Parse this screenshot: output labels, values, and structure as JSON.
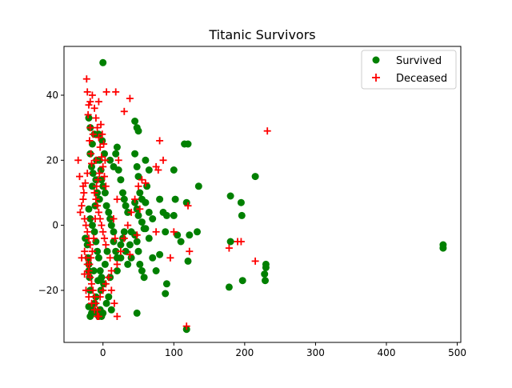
{
  "chart_data": {
    "type": "scatter",
    "title": "Titanic Survivors",
    "xlabel": "",
    "ylabel": "",
    "xlim": [
      -55,
      505
    ],
    "ylim": [
      -36,
      55
    ],
    "xticks": [
      0,
      100,
      200,
      300,
      400,
      500
    ],
    "yticks": [
      -20,
      0,
      20,
      40
    ],
    "grid": false,
    "legend": {
      "placement": "top-right"
    },
    "series": [
      {
        "name": "Survived",
        "marker": "circle",
        "color": "#008000",
        "points": [
          [
            0,
            50
          ],
          [
            -25,
            -4
          ],
          [
            -22,
            -6
          ],
          [
            -21,
            -10
          ],
          [
            -20,
            -12
          ],
          [
            -20,
            -14
          ],
          [
            -19,
            -16
          ],
          [
            -18,
            -20
          ],
          [
            -20,
            -25
          ],
          [
            -18,
            -28
          ],
          [
            -16,
            -27
          ],
          [
            -14,
            -26
          ],
          [
            -12,
            -24
          ],
          [
            -10,
            -22
          ],
          [
            -8,
            -27
          ],
          [
            -6,
            -28
          ],
          [
            -4,
            -26
          ],
          [
            -2,
            -28
          ],
          [
            0,
            -27
          ],
          [
            5,
            -24
          ],
          [
            -20,
            33
          ],
          [
            -18,
            30
          ],
          [
            -15,
            25
          ],
          [
            -12,
            28
          ],
          [
            -18,
            22
          ],
          [
            -16,
            18
          ],
          [
            -14,
            16
          ],
          [
            -10,
            14
          ],
          [
            -15,
            12
          ],
          [
            -8,
            10
          ],
          [
            -5,
            8
          ],
          [
            -20,
            5
          ],
          [
            -18,
            2
          ],
          [
            -15,
            0
          ],
          [
            -12,
            -2
          ],
          [
            -10,
            -5
          ],
          [
            -8,
            -8
          ],
          [
            -6,
            -10
          ],
          [
            -4,
            -14
          ],
          [
            -2,
            -16
          ],
          [
            -5,
            20
          ],
          [
            -3,
            17
          ],
          [
            -2,
            14
          ],
          [
            0,
            12
          ],
          [
            3,
            10
          ],
          [
            5,
            6
          ],
          [
            8,
            4
          ],
          [
            10,
            2
          ],
          [
            12,
            0
          ],
          [
            15,
            -2
          ],
          [
            -1,
            26
          ],
          [
            2,
            22
          ],
          [
            -6,
            28
          ],
          [
            -9,
            20
          ],
          [
            -11,
            6
          ],
          [
            -13,
            -14
          ],
          [
            -7,
            -17
          ],
          [
            1,
            -18
          ],
          [
            3,
            -12
          ],
          [
            6,
            -8
          ],
          [
            10,
            20
          ],
          [
            15,
            18
          ],
          [
            18,
            22
          ],
          [
            20,
            24
          ],
          [
            22,
            17
          ],
          [
            25,
            14
          ],
          [
            28,
            10
          ],
          [
            30,
            8
          ],
          [
            32,
            6
          ],
          [
            35,
            4
          ],
          [
            15,
            -5
          ],
          [
            18,
            -8
          ],
          [
            20,
            -10
          ],
          [
            25,
            -6
          ],
          [
            28,
            -4
          ],
          [
            30,
            -2
          ],
          [
            32,
            -8
          ],
          [
            35,
            -12
          ],
          [
            38,
            -6
          ],
          [
            40,
            -10
          ],
          [
            45,
            32
          ],
          [
            48,
            30
          ],
          [
            50,
            29
          ],
          [
            45,
            22
          ],
          [
            48,
            18
          ],
          [
            50,
            15
          ],
          [
            52,
            10
          ],
          [
            55,
            8
          ],
          [
            45,
            7
          ],
          [
            48,
            5
          ],
          [
            50,
            3
          ],
          [
            55,
            1
          ],
          [
            58,
            -1
          ],
          [
            45,
            -3
          ],
          [
            48,
            -5
          ],
          [
            50,
            -8
          ],
          [
            52,
            -12
          ],
          [
            55,
            -14
          ],
          [
            48,
            -27
          ],
          [
            58,
            -16
          ],
          [
            60,
            20
          ],
          [
            65,
            17
          ],
          [
            62,
            12
          ],
          [
            60,
            7
          ],
          [
            65,
            4
          ],
          [
            70,
            2
          ],
          [
            60,
            -1
          ],
          [
            65,
            -4
          ],
          [
            70,
            -10
          ],
          [
            75,
            -14
          ],
          [
            80,
            8
          ],
          [
            85,
            4
          ],
          [
            90,
            3
          ],
          [
            88,
            -2
          ],
          [
            80,
            -9
          ],
          [
            90,
            -18
          ],
          [
            88,
            -21
          ],
          [
            100,
            17
          ],
          [
            102,
            8
          ],
          [
            100,
            3
          ],
          [
            105,
            -3
          ],
          [
            110,
            -5
          ],
          [
            115,
            25
          ],
          [
            120,
            25
          ],
          [
            118,
            7
          ],
          [
            122,
            -3
          ],
          [
            120,
            -11
          ],
          [
            118,
            -32
          ],
          [
            135,
            12
          ],
          [
            133,
            -2
          ],
          [
            180,
            9
          ],
          [
            180,
            -5
          ],
          [
            178,
            -19
          ],
          [
            195,
            7
          ],
          [
            196,
            3
          ],
          [
            197,
            -17
          ],
          [
            215,
            15
          ],
          [
            230,
            -12
          ],
          [
            230,
            -13
          ],
          [
            228,
            -15
          ],
          [
            229,
            -17
          ],
          [
            480,
            -6
          ],
          [
            480,
            -7
          ],
          [
            20,
            -14
          ],
          [
            25,
            -10
          ],
          [
            10,
            -16
          ],
          [
            -3,
            -20
          ],
          [
            8,
            -22
          ],
          [
            12,
            -26
          ],
          [
            40,
            -2
          ]
        ]
      },
      {
        "name": "Deceased",
        "marker": "plus",
        "color": "#ff0000",
        "points": [
          [
            -23,
            45
          ],
          [
            -22,
            41
          ],
          [
            -20,
            37
          ],
          [
            -21,
            34
          ],
          [
            -18,
            30
          ],
          [
            -19,
            26
          ],
          [
            -17,
            22
          ],
          [
            -16,
            19
          ],
          [
            -22,
            16
          ],
          [
            -25,
            13
          ],
          [
            -27,
            10
          ],
          [
            -28,
            8
          ],
          [
            -30,
            6
          ],
          [
            -32,
            4
          ],
          [
            -26,
            2
          ],
          [
            -24,
            0
          ],
          [
            -22,
            -2
          ],
          [
            -20,
            -4
          ],
          [
            -18,
            -6
          ],
          [
            -26,
            -8
          ],
          [
            -24,
            -10
          ],
          [
            -22,
            -12
          ],
          [
            -20,
            -14
          ],
          [
            -18,
            -16
          ],
          [
            -16,
            -18
          ],
          [
            -14,
            -20
          ],
          [
            -12,
            -22
          ],
          [
            -10,
            -24
          ],
          [
            -8,
            -26
          ],
          [
            -6,
            -28
          ],
          [
            -15,
            40
          ],
          [
            -12,
            36
          ],
          [
            -10,
            33
          ],
          [
            -8,
            30
          ],
          [
            -6,
            27
          ],
          [
            -4,
            24
          ],
          [
            -2,
            21
          ],
          [
            0,
            18
          ],
          [
            2,
            15
          ],
          [
            4,
            12
          ],
          [
            -12,
            10
          ],
          [
            -10,
            8
          ],
          [
            -8,
            6
          ],
          [
            -6,
            4
          ],
          [
            -4,
            2
          ],
          [
            -2,
            0
          ],
          [
            0,
            -2
          ],
          [
            2,
            -4
          ],
          [
            4,
            -6
          ],
          [
            -3,
            31
          ],
          [
            -1,
            28
          ],
          [
            1,
            25
          ],
          [
            3,
            20
          ],
          [
            -5,
            16
          ],
          [
            -7,
            14
          ],
          [
            -9,
            12
          ],
          [
            -11,
            2
          ],
          [
            -13,
            -4
          ],
          [
            -15,
            -8
          ],
          [
            -17,
            -10
          ],
          [
            -19,
            -12
          ],
          [
            -21,
            -15
          ],
          [
            5,
            41
          ],
          [
            18,
            41
          ],
          [
            38,
            39
          ],
          [
            30,
            35
          ],
          [
            22,
            20
          ],
          [
            20,
            8
          ],
          [
            15,
            2
          ],
          [
            17,
            -4
          ],
          [
            10,
            -10
          ],
          [
            12,
            -14
          ],
          [
            20,
            -12
          ],
          [
            25,
            -8
          ],
          [
            30,
            -4
          ],
          [
            35,
            0
          ],
          [
            40,
            4
          ],
          [
            45,
            8
          ],
          [
            50,
            12
          ],
          [
            55,
            14
          ],
          [
            60,
            13
          ],
          [
            38,
            -9
          ],
          [
            48,
            -3
          ],
          [
            52,
            5
          ],
          [
            75,
            18
          ],
          [
            78,
            17
          ],
          [
            80,
            26
          ],
          [
            85,
            20
          ],
          [
            75,
            -2
          ],
          [
            95,
            -10
          ],
          [
            100,
            -2
          ],
          [
            120,
            6
          ],
          [
            122,
            -8
          ],
          [
            118,
            -31
          ],
          [
            178,
            -7
          ],
          [
            190,
            -5
          ],
          [
            195,
            -5
          ],
          [
            232,
            29
          ],
          [
            215,
            -11
          ],
          [
            -24,
            -20
          ],
          [
            -20,
            -22
          ],
          [
            -16,
            -24
          ],
          [
            -12,
            -26
          ],
          [
            -8,
            -28
          ],
          [
            -4,
            -22
          ],
          [
            0,
            -20
          ],
          [
            4,
            -18
          ],
          [
            8,
            -16
          ],
          [
            12,
            -20
          ],
          [
            16,
            -24
          ],
          [
            20,
            -28
          ],
          [
            -35,
            20
          ],
          [
            -33,
            15
          ],
          [
            -30,
            -10
          ],
          [
            -28,
            12
          ],
          [
            -26,
            -15
          ],
          [
            -6,
            38
          ],
          [
            -18,
            38
          ],
          [
            -14,
            28
          ],
          [
            -10,
            20
          ]
        ]
      }
    ]
  },
  "colors": {
    "axes": "#000000",
    "background": "#ffffff"
  }
}
